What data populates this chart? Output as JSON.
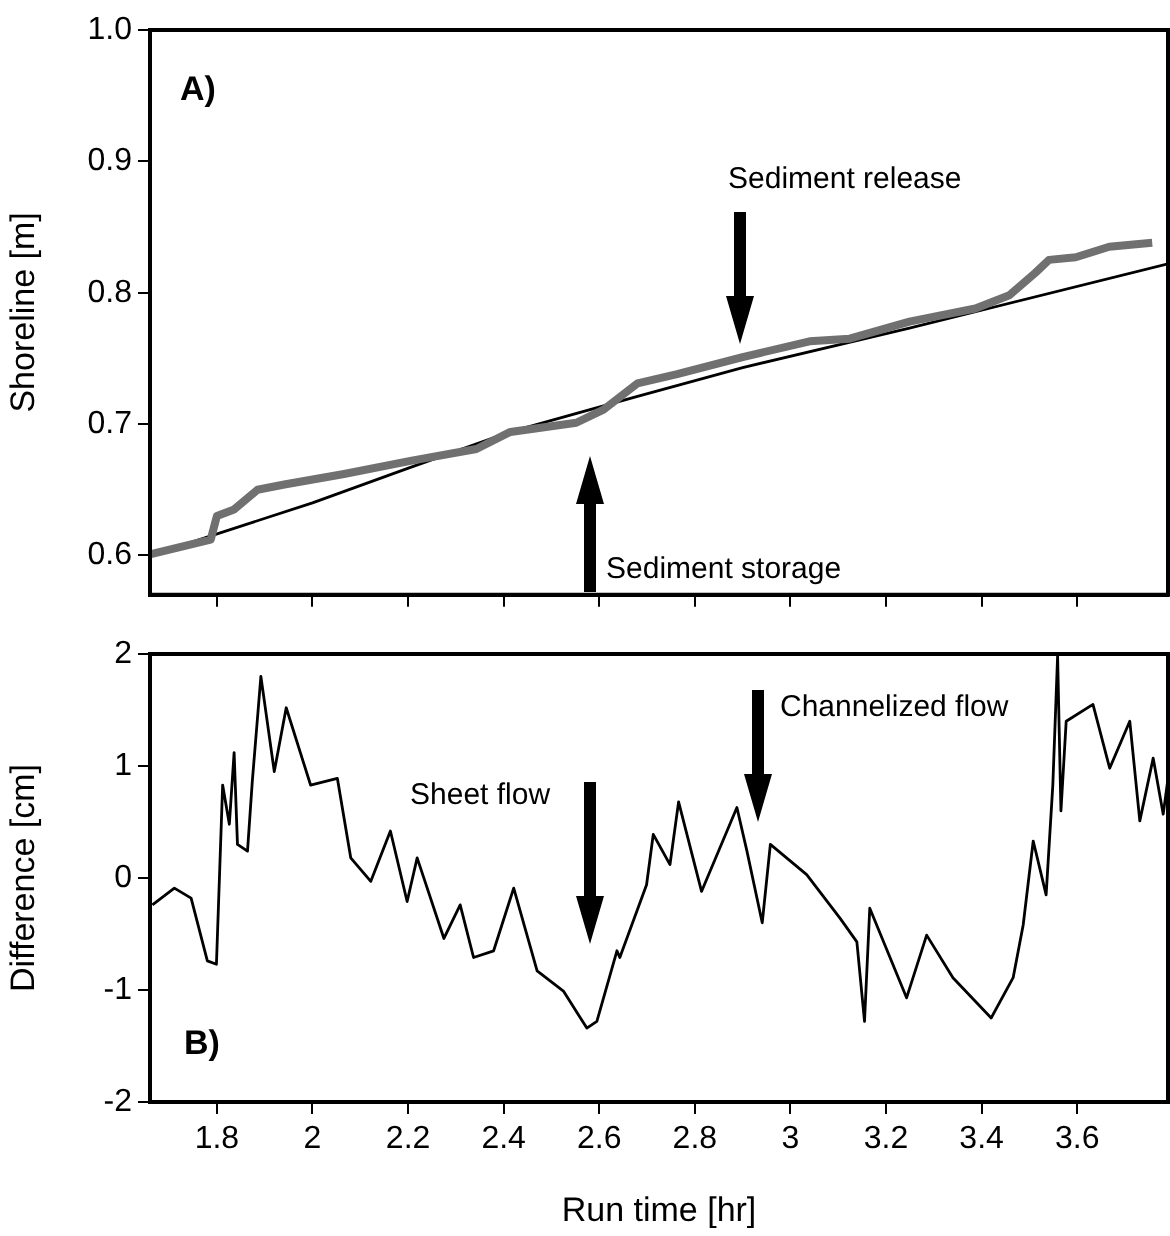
{
  "chart_data": [
    {
      "type": "line",
      "ylabel": "Shoreline [m]",
      "xlim": [
        1.66,
        3.79
      ],
      "xticks": [
        1.8,
        2,
        2.2,
        2.4,
        2.6,
        2.8,
        3,
        3.2,
        3.4,
        3.6
      ],
      "ylim": [
        0.57,
        1.0
      ],
      "yticks": [
        0.6,
        0.7,
        0.8,
        0.9,
        {
          "value": 1.0,
          "label": "1.0"
        }
      ],
      "tick_labels": "y",
      "grid": false,
      "legend": false,
      "series": [
        {
          "color": "#707070",
          "x": [
            1.662,
            1.787,
            1.8,
            1.836,
            1.885,
            1.941,
            2.066,
            2.205,
            2.343,
            2.414,
            2.552,
            2.609,
            2.68,
            2.763,
            2.9,
            3.04,
            3.124,
            3.249,
            3.387,
            3.458,
            3.512,
            3.541,
            3.597,
            3.667,
            3.757
          ],
          "values": [
            0.601,
            0.612,
            0.63,
            0.635,
            0.65,
            0.654,
            0.662,
            0.672,
            0.681,
            0.694,
            0.701,
            0.711,
            0.731,
            0.738,
            0.751,
            0.763,
            0.765,
            0.778,
            0.788,
            0.798,
            0.815,
            0.825,
            0.827,
            0.835,
            0.838
          ]
        },
        {
          "color": "#000000",
          "x": [
            1.662,
            2.0,
            2.205,
            2.414,
            2.68,
            2.9,
            3.249,
            3.79
          ],
          "values": [
            0.6,
            0.64,
            0.667,
            0.694,
            0.721,
            0.743,
            0.773,
            0.822
          ]
        }
      ],
      "annotations": [
        "A)",
        "Sediment release",
        "Sediment storage"
      ]
    },
    {
      "type": "line",
      "xlabel": "Run time [hr]",
      "ylabel": "Difference [cm]",
      "xlim": [
        1.66,
        3.79
      ],
      "xticks": [
        1.8,
        2,
        2.2,
        2.4,
        2.6,
        2.8,
        3,
        3.2,
        3.4,
        3.6
      ],
      "ylim": [
        -2,
        2
      ],
      "yticks": [
        -2,
        -1,
        0,
        1,
        2
      ],
      "grid": false,
      "legend": false,
      "series": [
        {
          "color": "#000000",
          "x": [
            1.665,
            1.711,
            1.746,
            1.78,
            1.799,
            1.812,
            1.826,
            1.836,
            1.843,
            1.864,
            1.874,
            1.892,
            1.92,
            1.945,
            1.996,
            2.052,
            2.08,
            2.122,
            2.163,
            2.198,
            2.219,
            2.275,
            2.309,
            2.337,
            2.379,
            2.421,
            2.47,
            2.525,
            2.574,
            2.595,
            2.637,
            2.643,
            2.699,
            2.713,
            2.748,
            2.766,
            2.814,
            2.888,
            2.909,
            2.941,
            2.958,
            3.034,
            3.104,
            3.139,
            3.155,
            3.166,
            3.243,
            3.285,
            3.34,
            3.42,
            3.466,
            3.487,
            3.508,
            3.535,
            3.549,
            3.559,
            3.566,
            3.577,
            3.633,
            3.668,
            3.71,
            3.731,
            3.759,
            3.78,
            3.79
          ],
          "values": [
            -0.24,
            -0.09,
            -0.18,
            -0.74,
            -0.77,
            0.83,
            0.48,
            1.12,
            0.3,
            0.24,
            0.86,
            1.8,
            0.95,
            1.52,
            0.83,
            0.89,
            0.18,
            -0.03,
            0.42,
            -0.21,
            0.18,
            -0.54,
            -0.24,
            -0.71,
            -0.65,
            -0.09,
            -0.83,
            -1.01,
            -1.34,
            -1.28,
            -0.65,
            -0.71,
            -0.06,
            0.39,
            0.12,
            0.68,
            -0.12,
            0.63,
            0.24,
            -0.4,
            0.3,
            0.03,
            -0.36,
            -0.57,
            -1.28,
            -0.27,
            -1.07,
            -0.51,
            -0.89,
            -1.25,
            -0.89,
            -0.42,
            0.33,
            -0.15,
            0.83,
            1.98,
            0.6,
            1.4,
            1.55,
            0.98,
            1.4,
            0.51,
            1.07,
            0.57,
            0.89
          ]
        }
      ],
      "annotations": [
        "B)",
        "Sheet flow",
        "Channelized flow"
      ]
    }
  ]
}
